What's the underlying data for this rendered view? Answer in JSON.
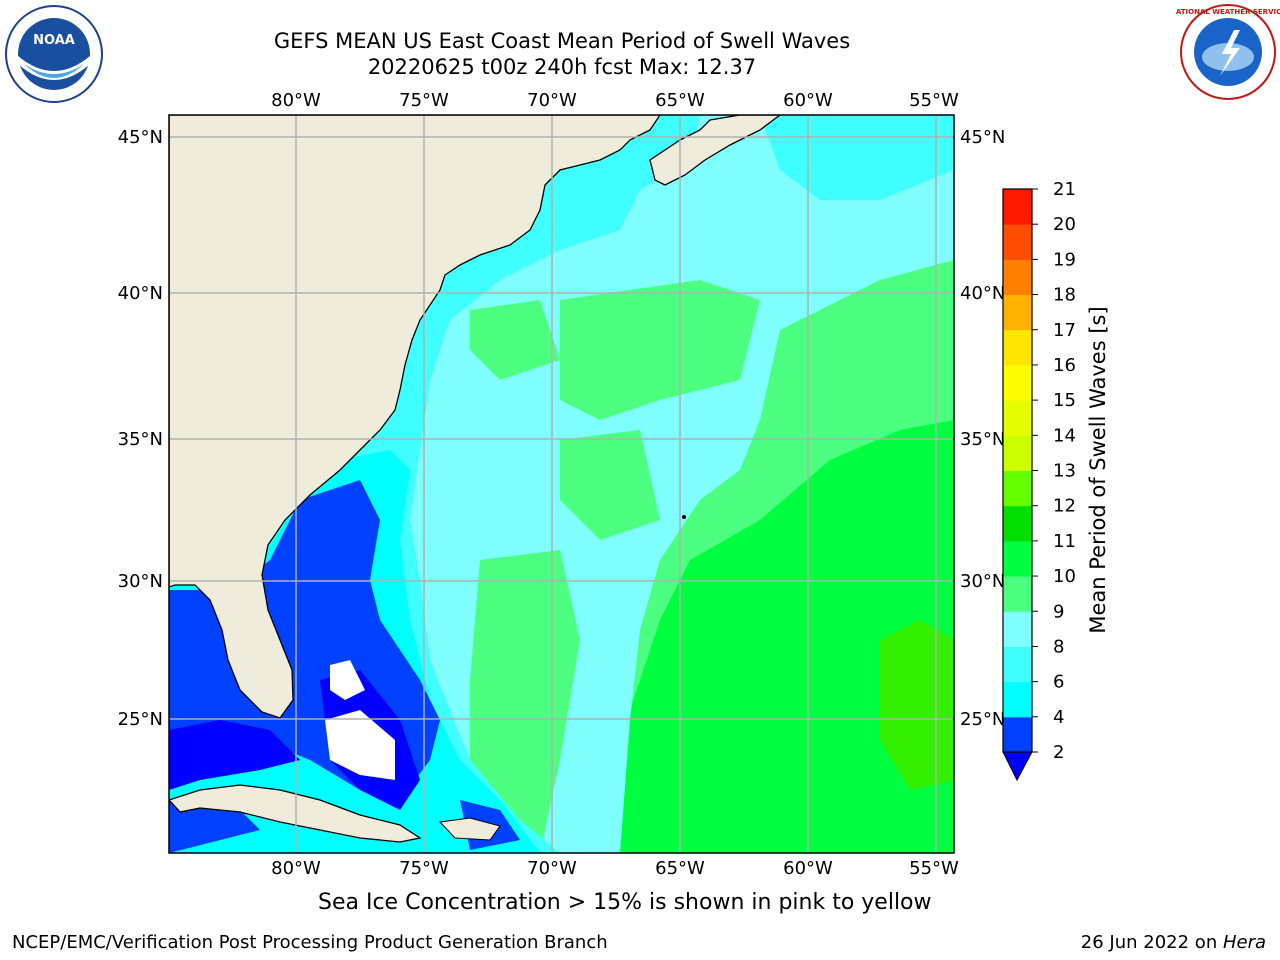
{
  "title_line1": "GEFS MEAN US East Coast Mean Period of Swell Waves",
  "title_line2": "20220625 t00z 240h fcst   Max: 12.37",
  "subtitle": "Sea Ice Concentration > 15% is shown in pink to yellow",
  "footer_left": "NCEP/EMC/Verification Post Processing Product Generation Branch",
  "footer_date": "26 Jun 2022 on ",
  "footer_host": "Hera",
  "logos": {
    "left": "NOAA",
    "right": "NATIONAL WEATHER SERVICE"
  },
  "map": {
    "lon_labels": [
      "80°W",
      "75°W",
      "70°W",
      "65°W",
      "60°W",
      "55°W"
    ],
    "lat_labels": [
      "45°N",
      "40°N",
      "35°N",
      "30°N",
      "25°N"
    ],
    "land_color": "#efecdc",
    "grid_color": "#b0b0b0",
    "regions": [
      {
        "name": "high-period-far-east",
        "class": "11"
      },
      {
        "name": "central-ocean",
        "class": "9"
      },
      {
        "name": "shelf",
        "class": "8"
      },
      {
        "name": "nearshore",
        "class": "6"
      },
      {
        "name": "florida-coast",
        "class": "4"
      },
      {
        "name": "florida-straits",
        "class": "2"
      }
    ]
  },
  "colorbar": {
    "label": "Mean Period of Swell Waves [s]",
    "ticks": [
      "2",
      "4",
      "6",
      "8",
      "9",
      "10",
      "11",
      "12",
      "13",
      "14",
      "15",
      "16",
      "17",
      "18",
      "19",
      "20",
      "21"
    ],
    "colors": [
      "#0040ff",
      "#00ffff",
      "#40ffff",
      "#80ffff",
      "#4dff80",
      "#00ff40",
      "#00e000",
      "#66ff00",
      "#ccff00",
      "#e5ff00",
      "#ffff00",
      "#ffe600",
      "#ffb300",
      "#ff8000",
      "#ff4d00",
      "#ff1a00"
    ],
    "extend_color": "#0000ff"
  }
}
